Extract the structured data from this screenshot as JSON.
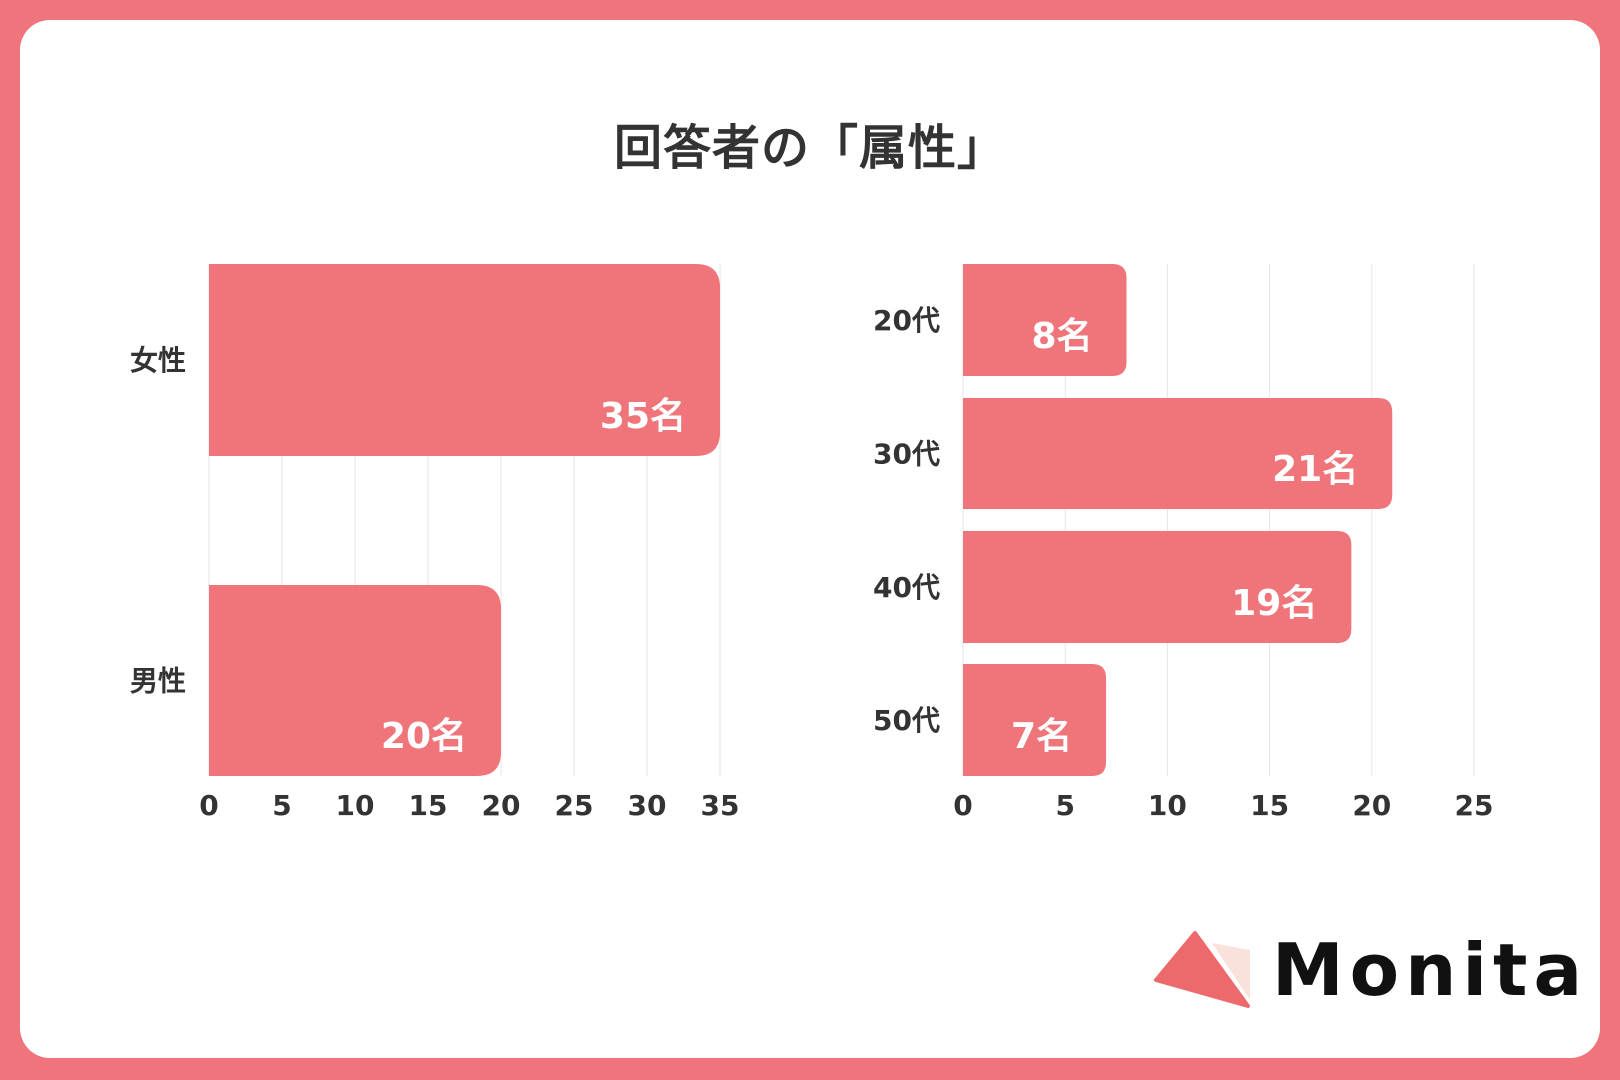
{
  "title": "回答者の「属性」",
  "colors": {
    "frame": "#ef747b",
    "bar": "#ef757b",
    "text": "#333333",
    "grid": "#e6e6e6"
  },
  "logo": {
    "text": "Monita"
  },
  "chart_data": [
    {
      "type": "bar",
      "orientation": "horizontal",
      "categories": [
        "女性",
        "男性"
      ],
      "values": [
        35,
        20
      ],
      "data_labels": [
        "35名",
        "20名"
      ],
      "xlim": [
        0,
        35
      ],
      "xticks": [
        "0",
        "5",
        "10",
        "15",
        "20",
        "25",
        "30",
        "35"
      ],
      "grid": true
    },
    {
      "type": "bar",
      "orientation": "horizontal",
      "categories": [
        "20代",
        "30代",
        "40代",
        "50代"
      ],
      "values": [
        8,
        21,
        19,
        7
      ],
      "data_labels": [
        "8名",
        "21名",
        "19名",
        "7名"
      ],
      "xlim": [
        0,
        25
      ],
      "xticks": [
        "0",
        "5",
        "10",
        "15",
        "20",
        "25"
      ],
      "grid": true
    }
  ]
}
